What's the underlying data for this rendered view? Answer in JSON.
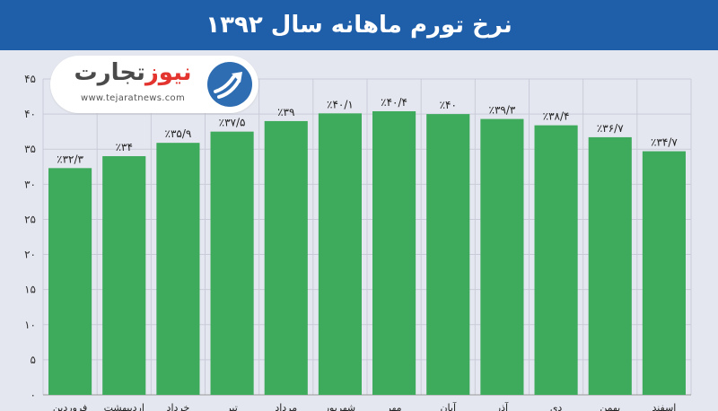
{
  "title": "نرخ تورم ماهانه سال ۱۳۹۲",
  "logo": {
    "name_part1": "نیوز",
    "name_part2": "تجارت",
    "url": "www.tejaratnews.com"
  },
  "colors": {
    "header": "#1f5ea8",
    "bar": "#3daa5c",
    "background": "#e5e7f0"
  },
  "chart_data": {
    "type": "bar",
    "categories": [
      "فروردین",
      "اردیبهشت",
      "خرداد",
      "تیر",
      "مرداد",
      "شهریور",
      "مهر",
      "آبان",
      "آذر",
      "دی",
      "بهمن",
      "اسفند"
    ],
    "values": [
      32.3,
      34,
      35.9,
      37.5,
      39,
      40.1,
      40.4,
      40,
      39.3,
      38.4,
      36.7,
      34.7
    ],
    "value_labels": [
      "٪۳۲/۳",
      "٪۳۴",
      "٪۳۵/۹",
      "٪۳۷/۵",
      "٪۳۹",
      "٪۴۰/۱",
      "٪۴۰/۴",
      "٪۴۰",
      "٪۳۹/۳",
      "٪۳۸/۴",
      "٪۳۶/۷",
      "٪۳۴/۷"
    ],
    "yticks": [
      0,
      5,
      10,
      15,
      20,
      25,
      30,
      35,
      40,
      45
    ],
    "ytick_labels": [
      "۰",
      "۵",
      "۱۰",
      "۱۵",
      "۲۰",
      "۲۵",
      "۳۰",
      "۳۵",
      "۴۰",
      "۴۵"
    ],
    "ylim": [
      0,
      45
    ],
    "grid": true
  }
}
